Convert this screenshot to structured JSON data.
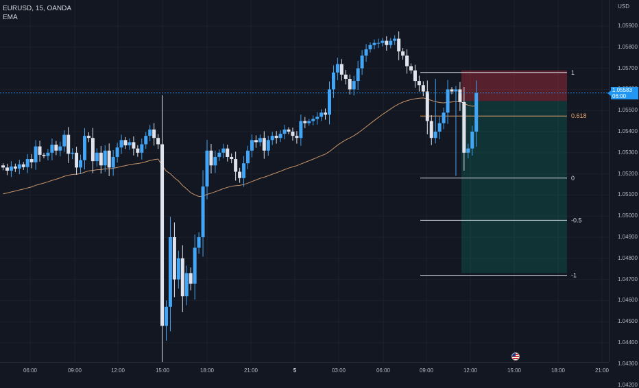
{
  "header": {
    "symbol_line": "EURUSD, 15, OANDA",
    "indicator": "EMA"
  },
  "price_axis": {
    "currency": "USD",
    "ticks": [
      "1.05900",
      "1.05800",
      "1.05700",
      "1.05600",
      "1.05500",
      "1.05400",
      "1.05300",
      "1.05200",
      "1.05100",
      "1.05000",
      "1.04900",
      "1.04800",
      "1.04700",
      "1.04600",
      "1.04500",
      "1.04400",
      "1.04300",
      "1.04200"
    ],
    "last_price": {
      "price": "1.05583",
      "countdown": "06:00"
    }
  },
  "time_axis": {
    "ticks": [
      "06:00",
      "09:00",
      "12:00",
      "15:00",
      "18:00",
      "21:00",
      "5",
      "03:00",
      "06:00",
      "09:00",
      "12:00",
      "15:00",
      "18:00",
      "21:00"
    ]
  },
  "fib": {
    "levels": [
      {
        "label": "1",
        "price": 1.0568
      },
      {
        "label": "0.618",
        "price": 1.05474
      },
      {
        "label": "0",
        "price": 1.0518
      },
      {
        "label": "-0.5",
        "price": 1.0498
      },
      {
        "label": "-1",
        "price": 1.0472
      }
    ]
  },
  "position": {
    "entry": 1.05545,
    "stop": 1.0569,
    "target": 1.0473
  },
  "colors": {
    "up": "#42a5f5",
    "down": "#e0e3eb",
    "ema": "#c8956a",
    "grid": "#1c202b",
    "fib": "#d1d4dc",
    "fib_highlight": "#f0a56b",
    "stop_zone": "rgba(242,54,69,0.30)",
    "target_zone": "rgba(8,153,129,0.22)",
    "last_price": "#2196f3"
  },
  "chart_data": {
    "type": "candlestick",
    "start_time": "04:00",
    "interval_minutes": 15,
    "close": [
      1.0523,
      1.05215,
      1.05235,
      1.05225,
      1.05245,
      1.05232,
      1.0527,
      1.05255,
      1.0533,
      1.0529,
      1.05285,
      1.053,
      1.05338,
      1.0531,
      1.0533,
      1.05385,
      1.05295,
      1.053,
      1.0523,
      1.05265,
      1.0538,
      1.0537,
      1.0526,
      1.053,
      1.0524,
      1.0531,
      1.0523,
      1.0528,
      1.05325,
      1.0536,
      1.05335,
      1.0535,
      1.0532,
      1.053,
      1.0534,
      1.0538,
      1.0541,
      1.0537,
      1.0534,
      1.0448,
      1.0457,
      1.049,
      1.047,
      1.048,
      1.0462,
      1.0473,
      1.0468,
      1.0485,
      1.049,
      1.0514,
      1.0531,
      1.0524,
      1.0528,
      1.053,
      1.0532,
      1.0528,
      1.0527,
      1.0521,
      1.0518,
      1.0525,
      1.0531,
      1.0536,
      1.0535,
      1.0537,
      1.0531,
      1.0536,
      1.0538,
      1.0537,
      1.0539,
      1.0541,
      1.054,
      1.0538,
      1.0537,
      1.0545,
      1.0544,
      1.0545,
      1.0546,
      1.0547,
      1.0549,
      1.0548,
      1.056,
      1.0568,
      1.0572,
      1.0567,
      1.0565,
      1.056,
      1.0564,
      1.057,
      1.0576,
      1.0579,
      1.0581,
      1.0582,
      1.0582,
      1.0583,
      1.0581,
      1.0583,
      1.0584,
      1.0578,
      1.0576,
      1.0571,
      1.0569,
      1.0564,
      1.0562,
      1.0559,
      1.0545,
      1.0537,
      1.054,
      1.0544,
      1.0549,
      1.056,
      1.0559,
      1.056,
      1.0554,
      1.053,
      1.0532,
      1.054,
      1.05583
    ],
    "ema_period": "",
    "ylim": [
      1.0418,
      1.0595
    ]
  }
}
